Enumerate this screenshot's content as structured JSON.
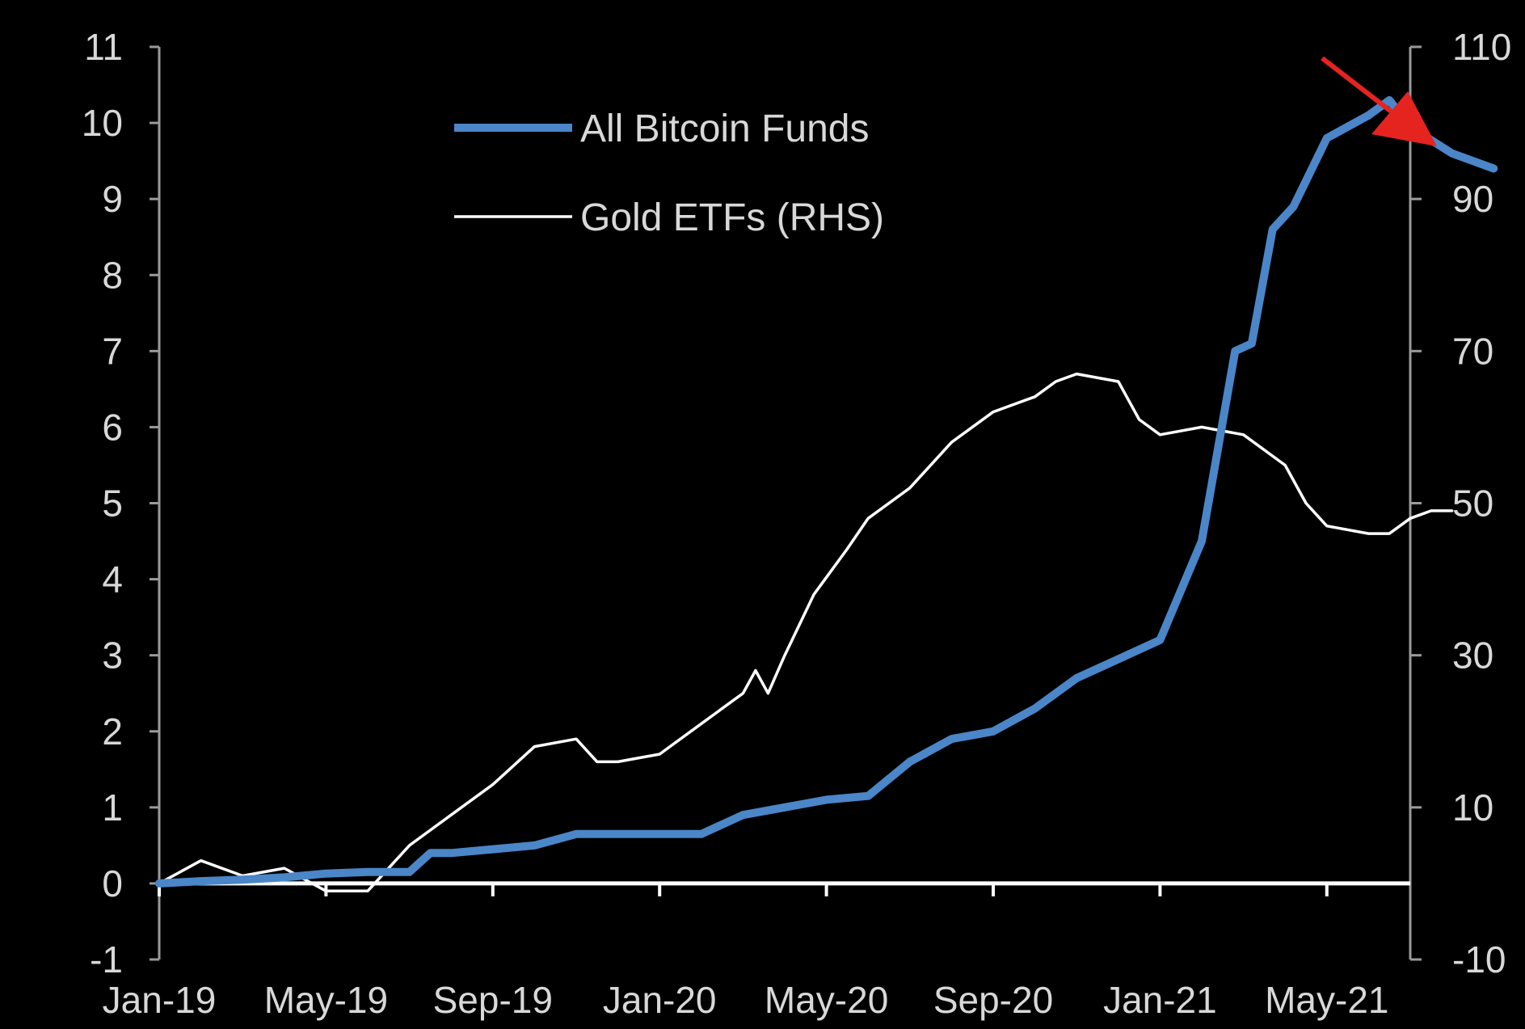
{
  "chart_data": {
    "type": "line",
    "title": "",
    "x_tick_labels": [
      "Jan-19",
      "May-19",
      "Sep-19",
      "Jan-20",
      "May-20",
      "Sep-20",
      "Jan-21",
      "May-21"
    ],
    "x_range_months": [
      0,
      30
    ],
    "left_axis": {
      "label": "",
      "range": [
        -1,
        11
      ],
      "ticks": [
        -1,
        0,
        1,
        2,
        3,
        4,
        5,
        6,
        7,
        8,
        9,
        10,
        11
      ]
    },
    "right_axis": {
      "label": "",
      "range": [
        -10,
        110
      ],
      "ticks": [
        -10,
        10,
        30,
        50,
        70,
        90,
        110
      ]
    },
    "legend": {
      "position": "top-center"
    },
    "series": [
      {
        "name": "All Bitcoin Funds",
        "axis": "left",
        "color": "#4a86c8",
        "points": [
          [
            0,
            0.0
          ],
          [
            1,
            0.03
          ],
          [
            2,
            0.05
          ],
          [
            3,
            0.08
          ],
          [
            4,
            0.13
          ],
          [
            5,
            0.15
          ],
          [
            6,
            0.15
          ],
          [
            6.5,
            0.4
          ],
          [
            7,
            0.4
          ],
          [
            8,
            0.45
          ],
          [
            9,
            0.5
          ],
          [
            10,
            0.65
          ],
          [
            11,
            0.65
          ],
          [
            12,
            0.65
          ],
          [
            13,
            0.65
          ],
          [
            14,
            0.9
          ],
          [
            15,
            1.0
          ],
          [
            16,
            1.1
          ],
          [
            17,
            1.15
          ],
          [
            18,
            1.6
          ],
          [
            19,
            1.9
          ],
          [
            20,
            2.0
          ],
          [
            21,
            2.3
          ],
          [
            22,
            2.7
          ],
          [
            23,
            2.95
          ],
          [
            24,
            3.2
          ],
          [
            25,
            4.5
          ],
          [
            25.8,
            7.0
          ],
          [
            26.2,
            7.1
          ],
          [
            26.7,
            8.6
          ],
          [
            27.2,
            8.9
          ],
          [
            28,
            9.8
          ],
          [
            29,
            10.1
          ],
          [
            29.5,
            10.3
          ],
          [
            30,
            9.95
          ],
          [
            31,
            9.6
          ],
          [
            31.5,
            9.5
          ],
          [
            32,
            9.4
          ]
        ]
      },
      {
        "name": "Gold ETFs (RHS)",
        "axis": "right",
        "color": "#ffffff",
        "points": [
          [
            0,
            0
          ],
          [
            1,
            3
          ],
          [
            2,
            1
          ],
          [
            3,
            2
          ],
          [
            4,
            -1
          ],
          [
            5,
            -1
          ],
          [
            6,
            5
          ],
          [
            7,
            9
          ],
          [
            8,
            13
          ],
          [
            9,
            18
          ],
          [
            10,
            19
          ],
          [
            10.5,
            16
          ],
          [
            11,
            16
          ],
          [
            12,
            17
          ],
          [
            13,
            21
          ],
          [
            14,
            25
          ],
          [
            14.3,
            28
          ],
          [
            14.6,
            25
          ],
          [
            15,
            30
          ],
          [
            15.7,
            38
          ],
          [
            16.5,
            44
          ],
          [
            17,
            48
          ],
          [
            18,
            52
          ],
          [
            19,
            58
          ],
          [
            20,
            62
          ],
          [
            21,
            64
          ],
          [
            21.5,
            66
          ],
          [
            22,
            67
          ],
          [
            23,
            66
          ],
          [
            23.5,
            61
          ],
          [
            24,
            59
          ],
          [
            25,
            60
          ],
          [
            26,
            59
          ],
          [
            27,
            55
          ],
          [
            27.5,
            50
          ],
          [
            28,
            47
          ],
          [
            29,
            46
          ],
          [
            29.5,
            46
          ],
          [
            30,
            48
          ],
          [
            30.5,
            49
          ],
          [
            31,
            49
          ]
        ]
      }
    ],
    "annotations": [
      {
        "type": "arrow",
        "color": "#e52420",
        "points_to": "recent decline in All Bitcoin Funds"
      }
    ]
  },
  "colors": {
    "background": "#000000",
    "axis": "#9a9a9a",
    "zero_line": "#ffffff",
    "arrow": "#e52420"
  }
}
